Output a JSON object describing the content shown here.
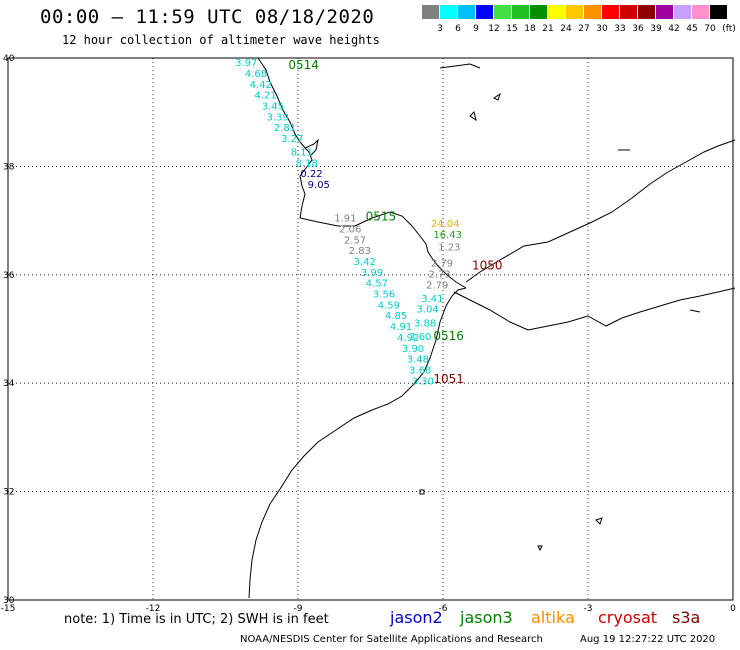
{
  "header": {
    "title": "00:00 – 11:59 UTC 08/18/2020",
    "subtitle": "12 hour collection of altimeter wave heights"
  },
  "colorbar": {
    "colors": [
      "#808080",
      "#00ffff",
      "#00bfff",
      "#0000ff",
      "#40e040",
      "#20c020",
      "#009000",
      "#ffff00",
      "#ffc800",
      "#ff9000",
      "#ff0000",
      "#d00000",
      "#900000",
      "#a000a0",
      "#c8a0ff",
      "#ff90c8",
      "#000000"
    ],
    "labels": [
      "3",
      "6",
      "9",
      "12",
      "15",
      "18",
      "21",
      "24",
      "27",
      "30",
      "33",
      "36",
      "39",
      "42",
      "45",
      "70"
    ],
    "unit": "(ft)"
  },
  "axes": {
    "lon_labels": [
      "-15",
      "-12",
      "-9",
      "-6",
      "-3",
      "0"
    ],
    "lat_labels": [
      "40",
      "38",
      "36",
      "34",
      "32",
      "30"
    ]
  },
  "tracks": {
    "pass_labels": [
      {
        "text": "0514",
        "color": "#008000",
        "lat": 39.8,
        "lon": -9.2
      },
      {
        "text": "0515",
        "color": "#008000",
        "lat": 37.0,
        "lon": -7.6
      },
      {
        "text": "0516",
        "color": "#008000",
        "lat": 34.8,
        "lon": -6.2
      },
      {
        "text": "1050",
        "color": "#800000",
        "lat": 36.1,
        "lon": -5.4
      },
      {
        "text": "1051",
        "color": "#800000",
        "lat": 34.0,
        "lon": -6.2
      }
    ],
    "values": [
      {
        "text": "3.97",
        "color": "#00cccc",
        "lat": 39.85,
        "lon": -10.3
      },
      {
        "text": "4.68",
        "color": "#00cccc",
        "lat": 39.65,
        "lon": -10.1
      },
      {
        "text": "4.42",
        "color": "#00cccc",
        "lat": 39.45,
        "lon": -10.0
      },
      {
        "text": "4.21",
        "color": "#00cccc",
        "lat": 39.25,
        "lon": -9.9
      },
      {
        "text": "3.45",
        "color": "#00cccc",
        "lat": 39.05,
        "lon": -9.75
      },
      {
        "text": "3.39",
        "color": "#00cccc",
        "lat": 38.85,
        "lon": -9.65
      },
      {
        "text": "2.81",
        "color": "#00cccc",
        "lat": 38.65,
        "lon": -9.5
      },
      {
        "text": "3.27",
        "color": "#00cccc",
        "lat": 38.45,
        "lon": -9.35
      },
      {
        "text": "8.11",
        "color": "#00cccc",
        "lat": 38.2,
        "lon": -9.15
      },
      {
        "text": "8.18",
        "color": "#00cccc",
        "lat": 38.0,
        "lon": -9.05
      },
      {
        "text": "0.22",
        "color": "#000080",
        "lat": 37.8,
        "lon": -8.95
      },
      {
        "text": "9.05",
        "color": "#000080",
        "lat": 37.6,
        "lon": -8.8
      },
      {
        "text": "1.91",
        "color": "#808080",
        "lat": 36.98,
        "lon": -8.25
      },
      {
        "text": "2.06",
        "color": "#808080",
        "lat": 36.78,
        "lon": -8.15
      },
      {
        "text": "2.57",
        "color": "#808080",
        "lat": 36.58,
        "lon": -8.05
      },
      {
        "text": "2.83",
        "color": "#808080",
        "lat": 36.38,
        "lon": -7.95
      },
      {
        "text": "3.42",
        "color": "#00cccc",
        "lat": 36.18,
        "lon": -7.85
      },
      {
        "text": "3.99",
        "color": "#00cccc",
        "lat": 35.98,
        "lon": -7.7
      },
      {
        "text": "4.57",
        "color": "#00cccc",
        "lat": 35.78,
        "lon": -7.6
      },
      {
        "text": "3.56",
        "color": "#00cccc",
        "lat": 35.58,
        "lon": -7.45
      },
      {
        "text": "4.59",
        "color": "#00cccc",
        "lat": 35.38,
        "lon": -7.35
      },
      {
        "text": "4.85",
        "color": "#00cccc",
        "lat": 35.18,
        "lon": -7.2
      },
      {
        "text": "4.91",
        "color": "#00cccc",
        "lat": 34.98,
        "lon": -7.1
      },
      {
        "text": "4.92",
        "color": "#00cccc",
        "lat": 34.78,
        "lon": -6.95
      },
      {
        "text": "3.90",
        "color": "#00cccc",
        "lat": 34.58,
        "lon": -6.85
      },
      {
        "text": "3.48",
        "color": "#00cccc",
        "lat": 34.38,
        "lon": -6.75
      },
      {
        "text": "3.68",
        "color": "#00cccc",
        "lat": 34.18,
        "lon": -6.7
      },
      {
        "text": "3.30",
        "color": "#00cccc",
        "lat": 33.98,
        "lon": -6.65
      },
      {
        "text": "24.04",
        "color": "#e0b000",
        "lat": 36.88,
        "lon": -6.25
      },
      {
        "text": "16.43",
        "color": "#20a020",
        "lat": 36.68,
        "lon": -6.2
      },
      {
        "text": "1.23",
        "color": "#808080",
        "lat": 36.45,
        "lon": -6.1
      },
      {
        "text": "2.79",
        "color": "#808080",
        "lat": 36.15,
        "lon": -6.25
      },
      {
        "text": "2.73",
        "color": "#808080",
        "lat": 35.95,
        "lon": -6.3
      },
      {
        "text": "2.79",
        "color": "#808080",
        "lat": 35.75,
        "lon": -6.35
      },
      {
        "text": "3.41",
        "color": "#00cccc",
        "lat": 35.5,
        "lon": -6.45
      },
      {
        "text": "3.04",
        "color": "#00cccc",
        "lat": 35.3,
        "lon": -6.55
      },
      {
        "text": "3.88",
        "color": "#00cccc",
        "lat": 35.05,
        "lon": -6.6
      },
      {
        "text": "3.60",
        "color": "#00cccc",
        "lat": 34.8,
        "lon": -6.7
      }
    ]
  },
  "footer": {
    "note": "note: 1) Time is in UTC; 2) SWH is in feet",
    "satellites": [
      {
        "name": "jason2",
        "color": "#0000cc"
      },
      {
        "name": "jason3",
        "color": "#008000"
      },
      {
        "name": "altika",
        "color": "#ff8c00"
      },
      {
        "name": "cryosat",
        "color": "#cc0000"
      },
      {
        "name": "s3a",
        "color": "#800000"
      }
    ],
    "credit": "NOAA/NESDIS Center for Satellite Applications and Research",
    "timestamp": "Aug 19 12:27:22 UTC 2020"
  }
}
